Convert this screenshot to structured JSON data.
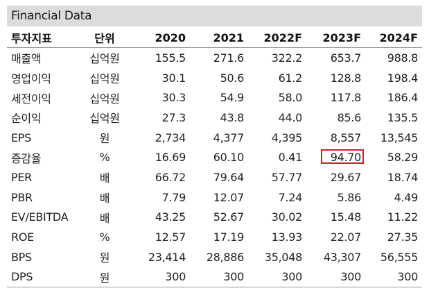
{
  "title": "Financial Data",
  "headers": [
    "투자지표",
    "단위",
    "2020",
    "2021",
    "2022F",
    "2023F",
    "2024F"
  ],
  "rows": [
    {
      "label": "매출액",
      "unit": "십억원",
      "values": [
        "155.5",
        "271.6",
        "322.2",
        "653.7",
        "988.8"
      ]
    },
    {
      "label": "영업이익",
      "unit": "십억원",
      "values": [
        "30.1",
        "50.6",
        "61.2",
        "128.8",
        "198.4"
      ]
    },
    {
      "label": "세전이익",
      "unit": "십억원",
      "values": [
        "30.3",
        "54.9",
        "58.0",
        "117.8",
        "186.4"
      ]
    },
    {
      "label": "순이익",
      "unit": "십억원",
      "values": [
        "27.3",
        "43.8",
        "44.0",
        "85.6",
        "135.5"
      ]
    },
    {
      "label": "EPS",
      "unit": "원",
      "values": [
        "2,734",
        "4,377",
        "4,395",
        "8,557",
        "13,545"
      ]
    },
    {
      "label": "증감율",
      "unit": "%",
      "values": [
        "16.69",
        "60.10",
        "0.41",
        "94.70",
        "58.29"
      ]
    },
    {
      "label": "PER",
      "unit": "배",
      "values": [
        "66.72",
        "79.64",
        "57.77",
        "29.67",
        "18.74"
      ]
    },
    {
      "label": "PBR",
      "unit": "배",
      "values": [
        "7.79",
        "12.07",
        "7.24",
        "5.86",
        "4.49"
      ]
    },
    {
      "label": "EV/EBITDA",
      "unit": "배",
      "values": [
        "43.25",
        "52.67",
        "30.02",
        "15.48",
        "11.22"
      ]
    },
    {
      "label": "ROE",
      "unit": "%",
      "values": [
        "12.57",
        "17.19",
        "13.93",
        "22.07",
        "27.35"
      ]
    },
    {
      "label": "BPS",
      "unit": "원",
      "values": [
        "23,414",
        "28,886",
        "35,048",
        "43,307",
        "56,555"
      ]
    },
    {
      "label": "DPS",
      "unit": "원",
      "values": [
        "300",
        "300",
        "300",
        "300",
        "300"
      ]
    }
  ],
  "highlight": {
    "row": 5,
    "col": 3,
    "color": "#d0202a"
  }
}
